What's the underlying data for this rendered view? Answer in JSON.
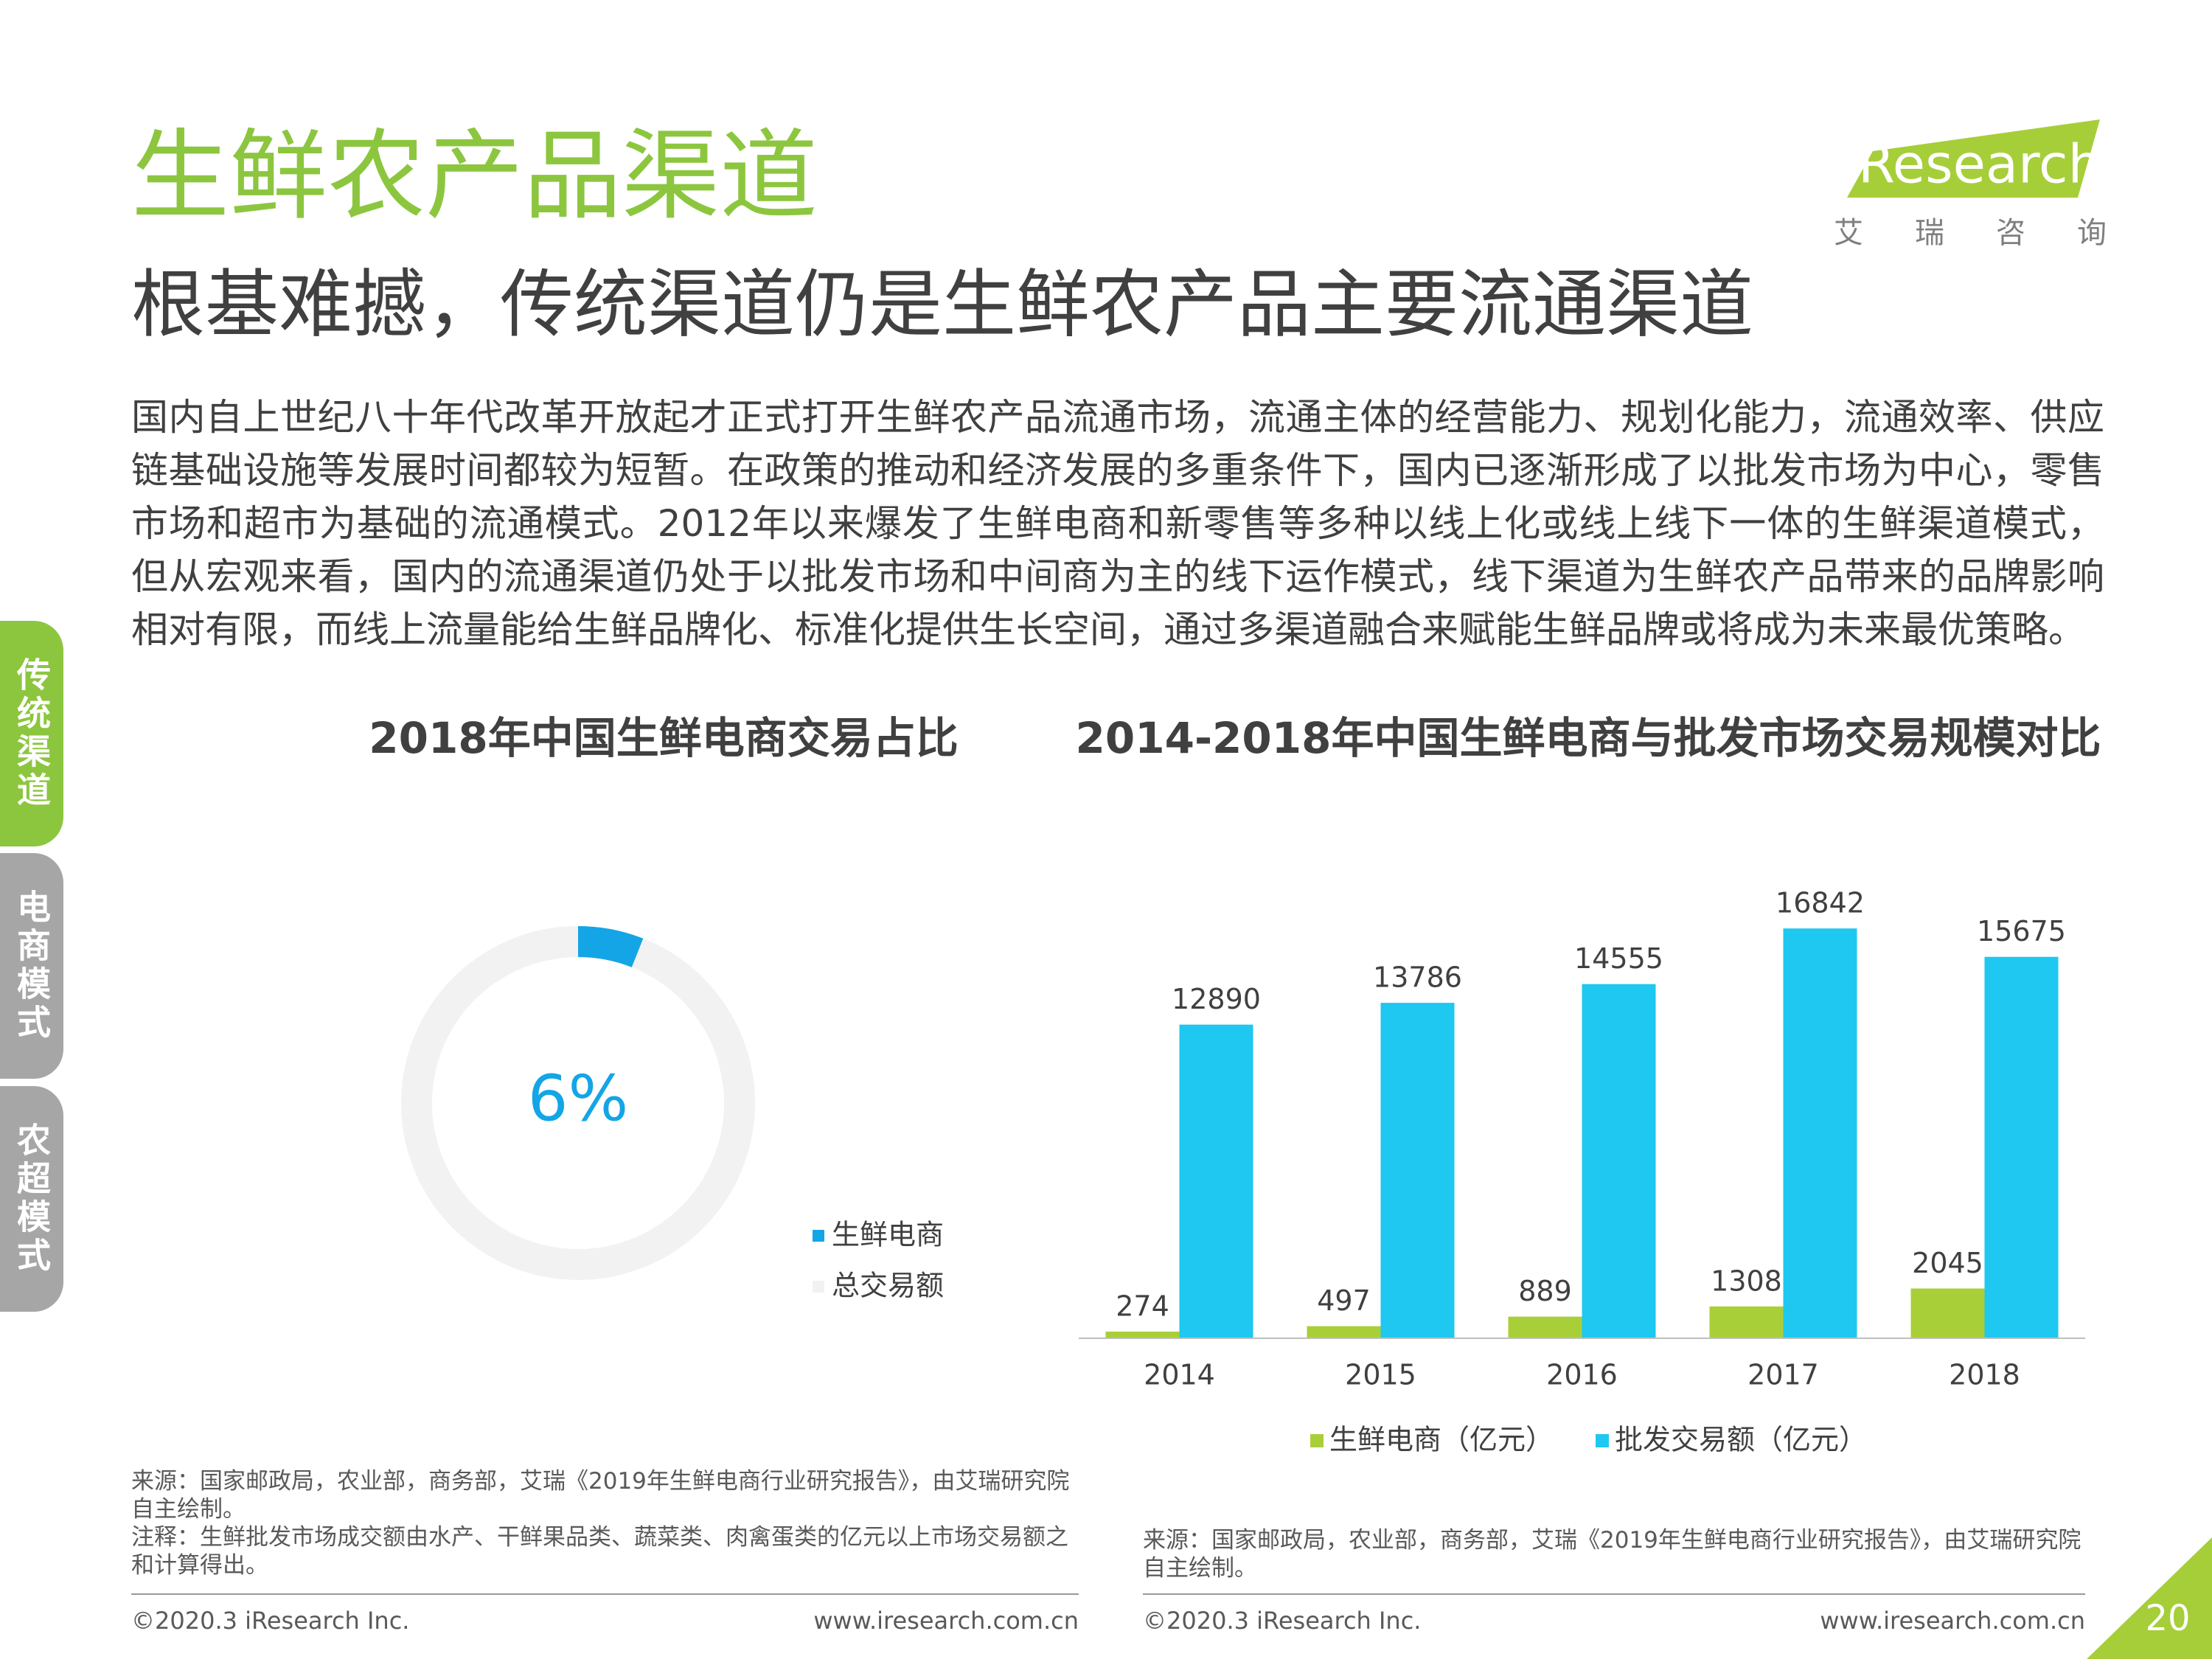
{
  "header": {
    "title": "生鲜农产品渠道",
    "subtitle": "根基难撼，传统渠道仍是生鲜农产品主要流通渠道"
  },
  "logo": {
    "name": "iResearch",
    "cn": "艾瑞咨询"
  },
  "body": {
    "paragraph": "国内自上世纪八十年代改革开放起才正式打开生鲜农产品流通市场，流通主体的经营能力、规划化能力，流通效率、供应链基础设施等发展时间都较为短暂。在政策的推动和经济发展的多重条件下，国内已逐渐形成了以批发市场为中心，零售市场和超市为基础的流通模式。2012年以来爆发了生鲜电商和新零售等多种以线上化或线上线下一体的生鲜渠道模式，但从宏观来看，国内的流通渠道仍处于以批发市场和中间商为主的线下运作模式，线下渠道为生鲜农产品带来的品牌影响相对有限，而线上流量能给生鲜品牌化、标准化提供生长空间，通过多渠道融合来赋能生鲜品牌或将成为未来最优策略。"
  },
  "sidebar": {
    "tabs": [
      "传统渠道",
      "电商模式",
      "农超模式"
    ]
  },
  "chart_data": [
    {
      "type": "donut",
      "title": "2018年中国生鲜电商交易占比",
      "categories": [
        "生鲜电商",
        "总交易额"
      ],
      "values": [
        6,
        94
      ],
      "value_labels": [
        "6%",
        null
      ],
      "colors": [
        "#14a5e6",
        "#f2f2f2"
      ]
    },
    {
      "type": "bar",
      "title": "2014-2018年中国生鲜电商与批发市场交易规模对比",
      "categories": [
        "2014",
        "2015",
        "2016",
        "2017",
        "2018"
      ],
      "series": [
        {
          "name": "生鲜电商（亿元）",
          "color": "#a9cf38",
          "values": [
            274,
            497,
            889,
            1308,
            2045
          ]
        },
        {
          "name": "批发交易额（亿元）",
          "color": "#1ec8f0",
          "values": [
            12890,
            13786,
            14555,
            16842,
            15675
          ]
        }
      ],
      "ylim": [
        0,
        18000
      ]
    }
  ],
  "notes": {
    "left_source": "来源：国家邮政局，农业部，商务部，艾瑞《2019年生鲜电商行业研究报告》，由艾瑞研究院自主绘制。",
    "left_note": "注释：生鲜批发市场成交额由水产、干鲜果品类、蔬菜类、肉禽蛋类的亿元以上市场交易额之和计算得出。",
    "right_source": "来源：国家邮政局，农业部，商务部，艾瑞《2019年生鲜电商行业研究报告》，由艾瑞研究院自主绘制。"
  },
  "footer": {
    "copyright": "©2020.3 iResearch Inc.",
    "website": "www.iresearch.com.cn",
    "page": "20"
  }
}
